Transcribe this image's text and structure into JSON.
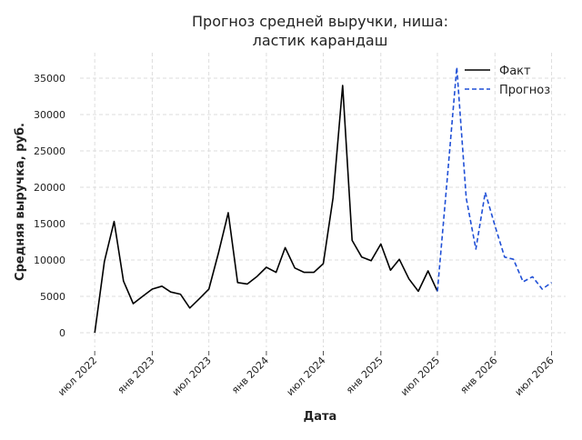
{
  "chart_data": {
    "type": "line",
    "title_lines": [
      "Прогноз средней выручки, ниша:",
      "ластик карандаш"
    ],
    "xlabel": "Дата",
    "ylabel": "Средняя выручка, руб.",
    "x_ticks": [
      "2022-07-01",
      "2023-01-01",
      "2023-07-01",
      "2024-01-01",
      "2024-07-01",
      "2025-01-01",
      "2025-07-01",
      "2026-01-01",
      "2026-07-01"
    ],
    "x_tick_labels": [
      "июл 2022",
      "янв 2023",
      "июл 2023",
      "янв 2024",
      "июл 2024",
      "янв 2025",
      "июл 2025",
      "янв 2026",
      "июл 2026"
    ],
    "y_ticks": [
      0,
      5000,
      10000,
      15000,
      20000,
      25000,
      30000,
      35000
    ],
    "y_tick_labels": [
      "0",
      "5000",
      "10000",
      "15000",
      "20000",
      "25000",
      "30000",
      "35000"
    ],
    "xlim": [
      "2022-05-15",
      "2026-08-15"
    ],
    "ylim": [
      -2000,
      38500
    ],
    "grid": true,
    "legend_position": "top-right",
    "series": [
      {
        "name": "Факт",
        "color": "#000000",
        "dash": "solid",
        "x": [
          "2022-07-01",
          "2022-08-01",
          "2022-09-01",
          "2022-10-01",
          "2022-11-01",
          "2022-12-01",
          "2023-01-01",
          "2023-02-01",
          "2023-03-01",
          "2023-04-01",
          "2023-05-01",
          "2023-06-01",
          "2023-07-01",
          "2023-08-01",
          "2023-09-01",
          "2023-10-01",
          "2023-11-01",
          "2023-12-01",
          "2024-01-01",
          "2024-02-01",
          "2024-03-01",
          "2024-04-01",
          "2024-05-01",
          "2024-06-01",
          "2024-07-01",
          "2024-08-01",
          "2024-09-01",
          "2024-10-01",
          "2024-11-01",
          "2024-12-01",
          "2025-01-01",
          "2025-02-01",
          "2025-03-01",
          "2025-04-01",
          "2025-05-01",
          "2025-06-01",
          "2025-07-01"
        ],
        "values": [
          0,
          9800,
          15300,
          7100,
          4000,
          5000,
          6000,
          6400,
          5600,
          5300,
          3400,
          4700,
          6000,
          11000,
          16500,
          6900,
          6700,
          7700,
          9000,
          8300,
          11700,
          8900,
          8300,
          8300,
          9500,
          18500,
          34000,
          12700,
          10400,
          9900,
          12200,
          8600,
          10100,
          7400,
          5700,
          8500,
          5700
        ]
      },
      {
        "name": "Прогноз",
        "color": "#1f4fd6",
        "dash": "dashed",
        "x": [
          "2025-07-01",
          "2025-08-01",
          "2025-09-01",
          "2025-10-01",
          "2025-11-01",
          "2025-12-01",
          "2026-01-01",
          "2026-02-01",
          "2026-03-01",
          "2026-04-01",
          "2026-05-01",
          "2026-06-01",
          "2026-07-01"
        ],
        "values": [
          5700,
          21000,
          36500,
          18500,
          11500,
          19300,
          14700,
          10400,
          10100,
          7000,
          7700,
          6000,
          6900
        ]
      }
    ]
  }
}
